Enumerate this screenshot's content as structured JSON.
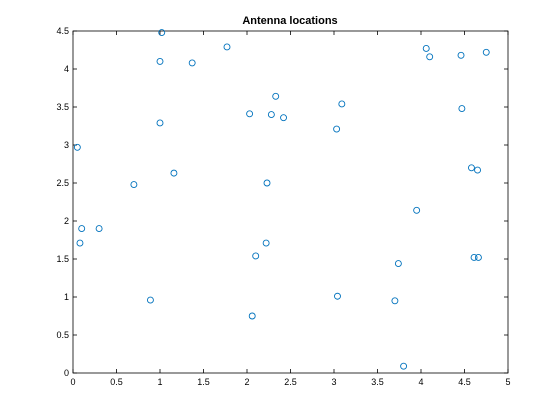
{
  "chart_data": {
    "type": "scatter",
    "title": "Antenna locations",
    "xlabel": "",
    "ylabel": "",
    "xlim": [
      0,
      5
    ],
    "ylim": [
      0,
      4.5
    ],
    "xticks": [
      "0",
      "0.5",
      "1",
      "1.5",
      "2",
      "2.5",
      "3",
      "3.5",
      "4",
      "4.5",
      "5"
    ],
    "yticks": [
      "0",
      "0.5",
      "1",
      "1.5",
      "2",
      "2.5",
      "3",
      "3.5",
      "4",
      "4.5"
    ],
    "grid": false,
    "marker": "circle-open",
    "marker_color": "#0072BD",
    "points": [
      {
        "x": 0.05,
        "y": 2.97
      },
      {
        "x": 0.08,
        "y": 1.71
      },
      {
        "x": 0.1,
        "y": 1.9
      },
      {
        "x": 0.3,
        "y": 1.9
      },
      {
        "x": 0.7,
        "y": 2.48
      },
      {
        "x": 0.89,
        "y": 0.96
      },
      {
        "x": 1.0,
        "y": 3.29
      },
      {
        "x": 1.0,
        "y": 4.1
      },
      {
        "x": 1.02,
        "y": 4.48
      },
      {
        "x": 1.16,
        "y": 2.63
      },
      {
        "x": 1.37,
        "y": 4.08
      },
      {
        "x": 1.77,
        "y": 4.29
      },
      {
        "x": 2.03,
        "y": 3.41
      },
      {
        "x": 2.06,
        "y": 0.75
      },
      {
        "x": 2.1,
        "y": 1.54
      },
      {
        "x": 2.22,
        "y": 1.71
      },
      {
        "x": 2.23,
        "y": 2.5
      },
      {
        "x": 2.28,
        "y": 3.4
      },
      {
        "x": 2.33,
        "y": 3.64
      },
      {
        "x": 2.42,
        "y": 3.36
      },
      {
        "x": 3.03,
        "y": 3.21
      },
      {
        "x": 3.04,
        "y": 1.01
      },
      {
        "x": 3.09,
        "y": 3.54
      },
      {
        "x": 3.7,
        "y": 0.95
      },
      {
        "x": 3.74,
        "y": 1.44
      },
      {
        "x": 3.8,
        "y": 0.09
      },
      {
        "x": 3.95,
        "y": 2.14
      },
      {
        "x": 4.06,
        "y": 4.27
      },
      {
        "x": 4.1,
        "y": 4.16
      },
      {
        "x": 4.46,
        "y": 4.18
      },
      {
        "x": 4.47,
        "y": 3.48
      },
      {
        "x": 4.58,
        "y": 2.7
      },
      {
        "x": 4.61,
        "y": 1.52
      },
      {
        "x": 4.65,
        "y": 2.67
      },
      {
        "x": 4.66,
        "y": 1.52
      },
      {
        "x": 4.75,
        "y": 4.22
      }
    ]
  }
}
